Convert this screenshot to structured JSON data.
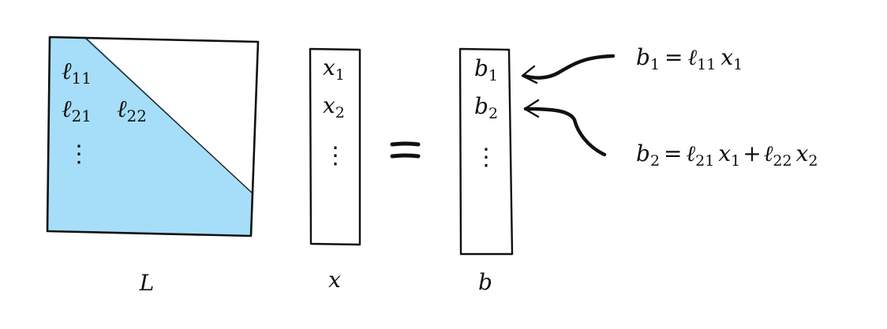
{
  "matrix_L": {
    "entries": [
      {
        "sym": "ℓ",
        "sub": "11"
      },
      {
        "sym": "ℓ",
        "sub": "21"
      },
      {
        "sym": "ℓ",
        "sub": "22"
      }
    ],
    "ellipsis": "⋮",
    "label": "L",
    "fill_color": "#a6defa"
  },
  "vector_x": {
    "entries": [
      {
        "sym": "x",
        "sub": "1"
      },
      {
        "sym": "x",
        "sub": "2"
      }
    ],
    "ellipsis": "⋮",
    "label": "x"
  },
  "equals_sign": "=",
  "vector_b": {
    "entries": [
      {
        "sym": "b",
        "sub": "1"
      },
      {
        "sym": "b",
        "sub": "2"
      }
    ],
    "ellipsis": "⋮",
    "label": "b"
  },
  "equations": [
    {
      "lhs": {
        "sym": "b",
        "sub": "1"
      },
      "eq": "=",
      "terms": [
        {
          "coef": "ℓ",
          "coef_sub": "11",
          "var": "x",
          "var_sub": "1"
        }
      ]
    },
    {
      "lhs": {
        "sym": "b",
        "sub": "2"
      },
      "eq": "=",
      "terms": [
        {
          "coef": "ℓ",
          "coef_sub": "21",
          "var": "x",
          "var_sub": "1"
        },
        {
          "op": "+",
          "coef": "ℓ",
          "coef_sub": "22",
          "var": "x",
          "var_sub": "2"
        }
      ]
    }
  ]
}
